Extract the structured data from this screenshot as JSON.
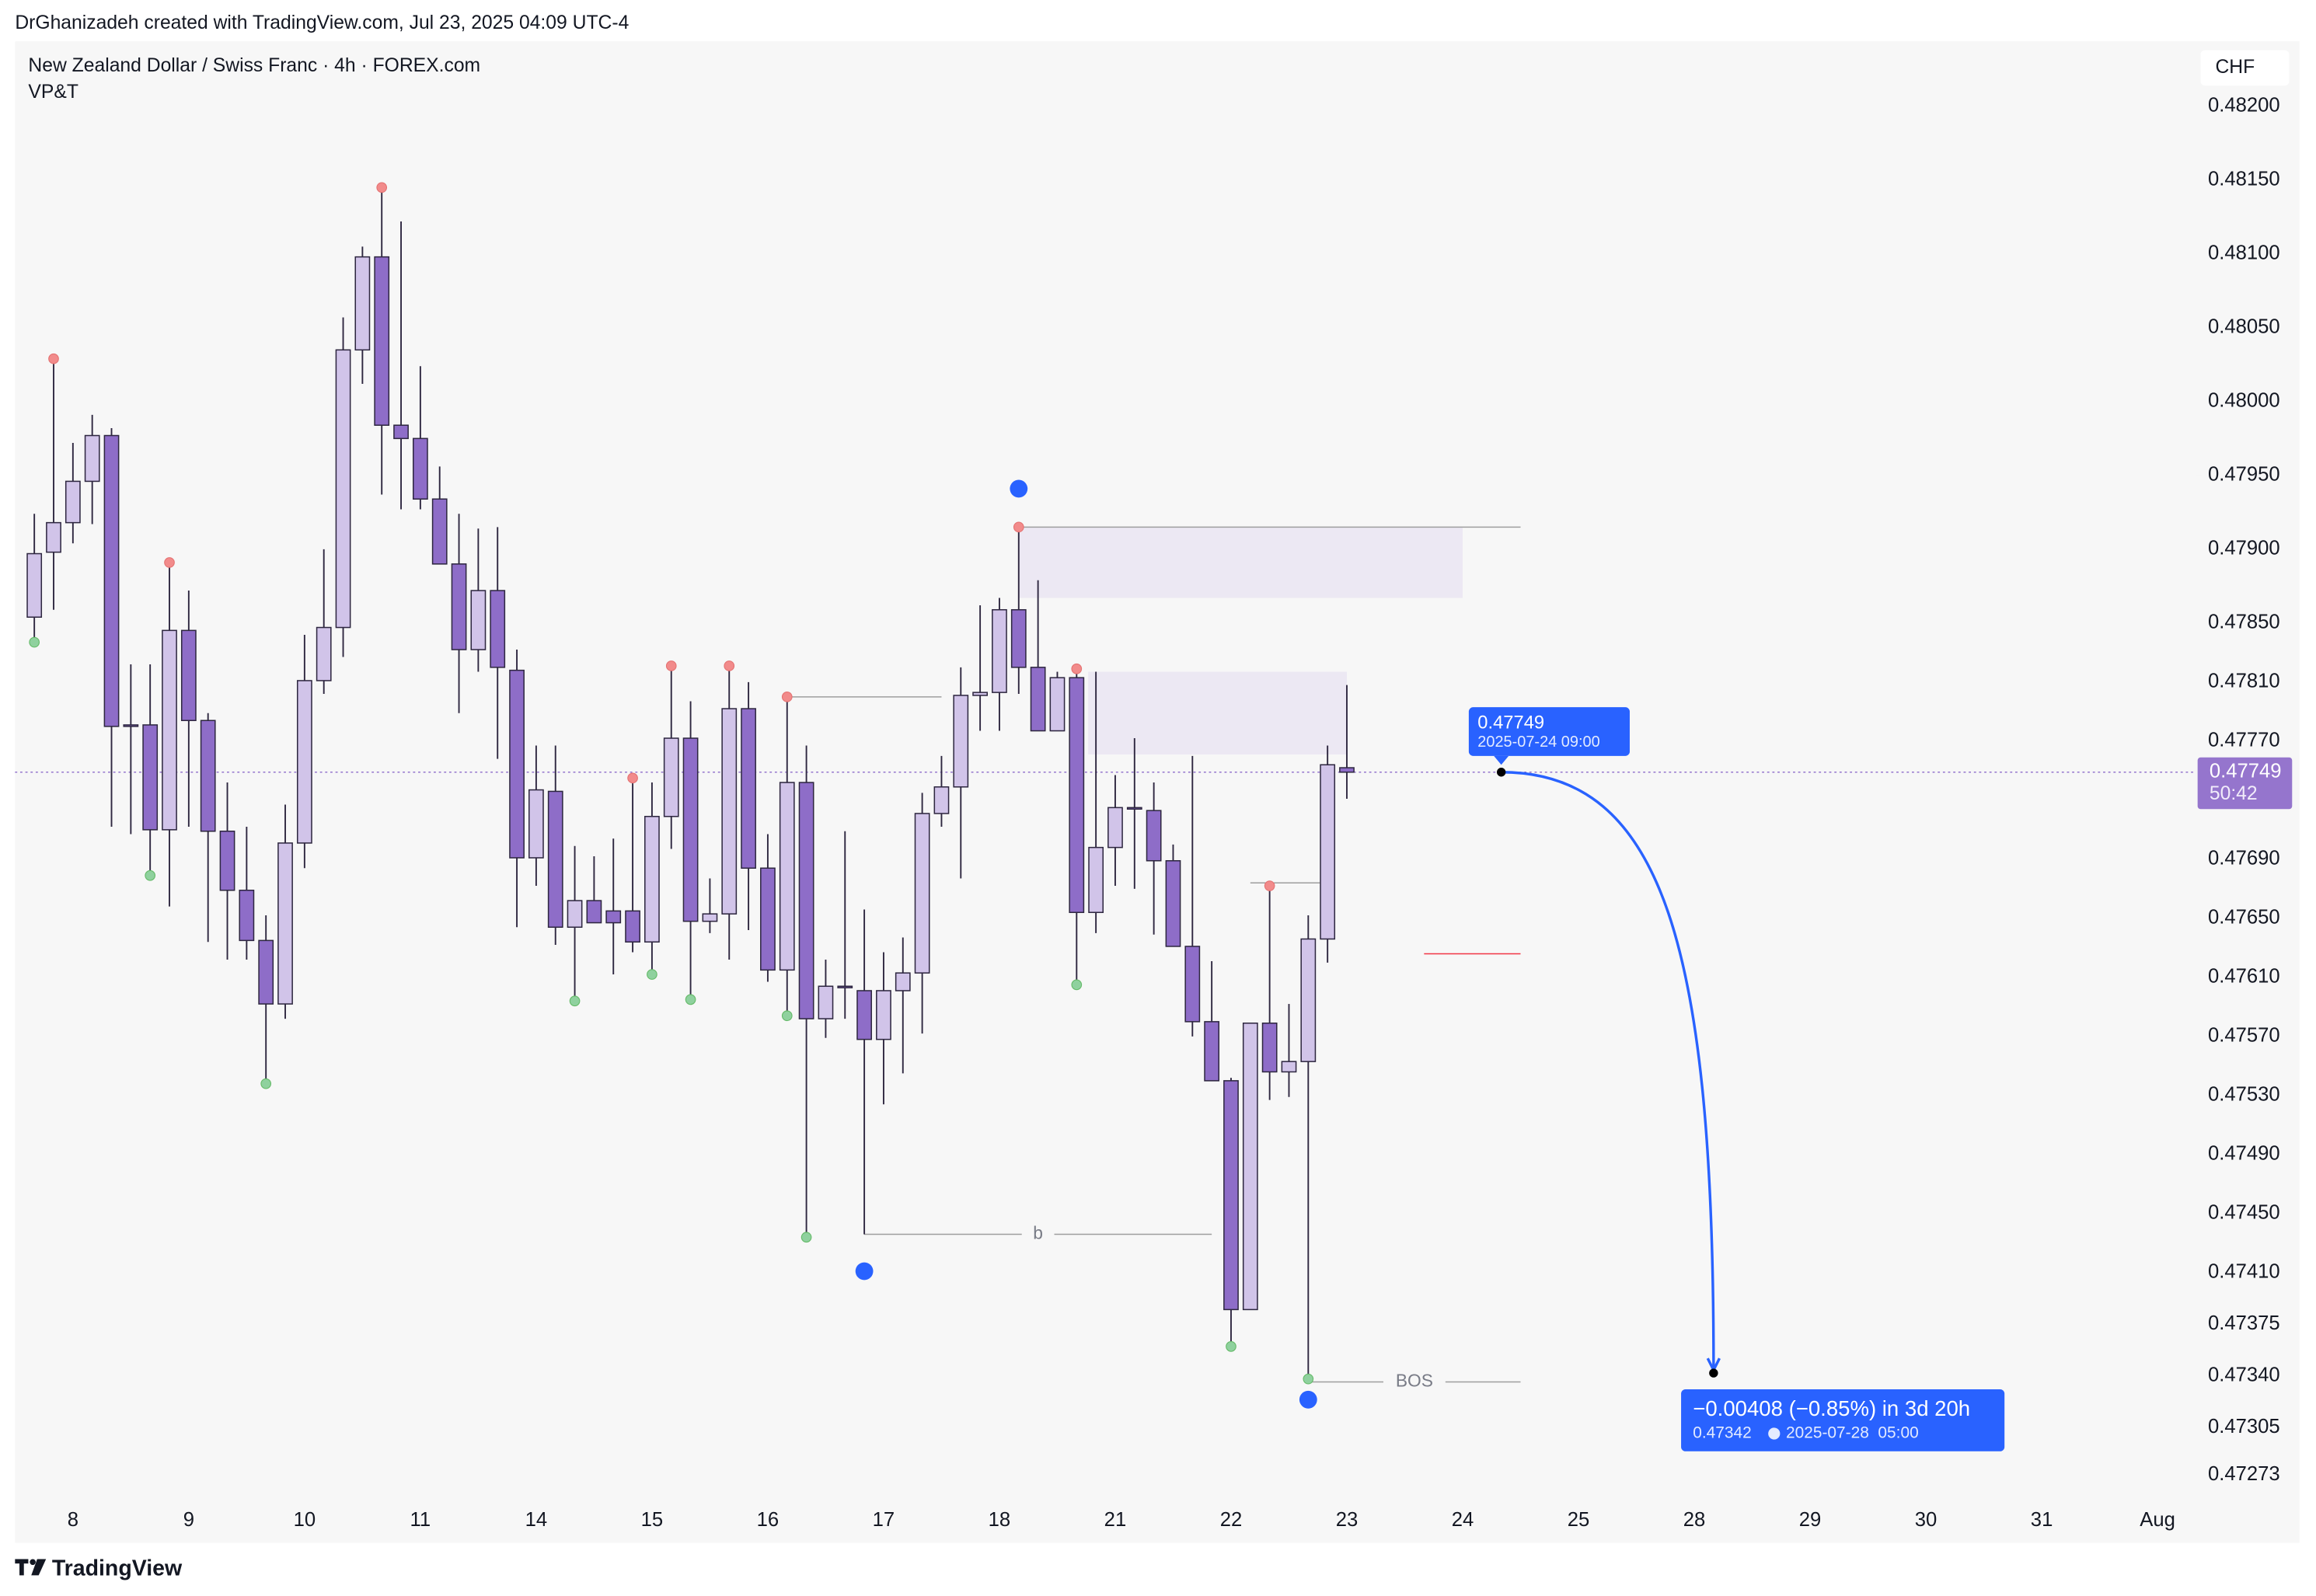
{
  "header": {
    "credit": "DrGhanizadeh created with TradingView.com, Jul 23, 2025 04:09 UTC-4",
    "symbol": "New Zealand Dollar / Swiss Franc · 4h · FOREX.com",
    "indicator": "VP&T",
    "currency": "CHF",
    "logo": "TradingView"
  },
  "chart_data": {
    "type": "candlestick",
    "x": [
      -2,
      -1,
      0,
      1,
      2,
      3,
      4,
      5,
      6,
      7,
      8,
      9,
      10,
      11,
      12,
      13,
      14,
      15,
      16,
      17,
      18,
      19,
      20,
      21,
      22,
      23,
      24,
      25,
      26,
      27,
      28,
      29,
      30,
      31,
      32,
      33,
      34,
      35,
      36,
      37,
      38,
      39,
      40,
      41,
      42,
      43,
      44,
      45,
      46,
      47,
      48,
      49,
      50,
      51,
      52,
      53,
      54,
      55,
      56,
      57,
      58,
      59,
      60,
      61,
      62,
      63,
      64,
      65,
      66
    ],
    "open": [
      0.47854,
      0.47898,
      0.47918,
      0.47946,
      0.47977,
      0.47781,
      0.47781,
      0.4771,
      0.47845,
      0.47784,
      0.47709,
      0.47669,
      0.47635,
      0.47592,
      0.47701,
      0.47811,
      0.47847,
      0.48035,
      0.48098,
      0.47984,
      0.47975,
      0.47934,
      0.4789,
      0.47832,
      0.47872,
      0.47818,
      0.47691,
      0.47736,
      0.47644,
      0.47662,
      0.47655,
      0.47655,
      0.47634,
      0.47719,
      0.47772,
      0.47648,
      0.47653,
      0.47792,
      0.47684,
      0.47615,
      0.47742,
      0.47582,
      0.47604,
      0.47601,
      0.47568,
      0.47601,
      0.47613,
      0.47721,
      0.47739,
      0.47801,
      0.47803,
      0.47859,
      0.4782,
      0.47777,
      0.47813,
      0.47654,
      0.47698,
      0.47725,
      0.47723,
      0.47689,
      0.47631,
      0.4758,
      0.4754,
      0.47385,
      0.47579,
      0.47546,
      0.47553,
      0.47636,
      0.47752
    ],
    "high": [
      0.47924,
      0.48029,
      0.47972,
      0.47991,
      0.47982,
      0.47822,
      0.47822,
      0.47891,
      0.47872,
      0.47789,
      0.47742,
      0.47712,
      0.47652,
      0.47727,
      0.47842,
      0.479,
      0.48057,
      0.48105,
      0.48145,
      0.48122,
      0.48024,
      0.47956,
      0.47924,
      0.47914,
      0.47915,
      0.47832,
      0.47767,
      0.47767,
      0.47699,
      0.47692,
      0.47704,
      0.47745,
      0.47742,
      0.47821,
      0.47797,
      0.47677,
      0.47821,
      0.4781,
      0.47707,
      0.478,
      0.47767,
      0.47622,
      0.47709,
      0.47656,
      0.47627,
      0.47637,
      0.47735,
      0.4776,
      0.4782,
      0.47862,
      0.47867,
      0.47915,
      0.47879,
      0.47817,
      0.47819,
      0.47817,
      0.47747,
      0.47772,
      0.47742,
      0.477,
      0.4776,
      0.47621,
      0.47542,
      0.47579,
      0.47672,
      0.47592,
      0.47652,
      0.47767,
      0.47808
    ],
    "low": [
      0.47837,
      0.47859,
      0.47904,
      0.47917,
      0.47712,
      0.47707,
      0.47679,
      0.47658,
      0.47712,
      0.47634,
      0.47622,
      0.47622,
      0.47538,
      0.47582,
      0.47684,
      0.47802,
      0.47827,
      0.48012,
      0.47937,
      0.47927,
      0.47927,
      0.4789,
      0.47789,
      0.47817,
      0.47758,
      0.47644,
      0.47672,
      0.47632,
      0.47594,
      0.47647,
      0.47612,
      0.47627,
      0.47612,
      0.47697,
      0.47595,
      0.4764,
      0.47622,
      0.47642,
      0.47607,
      0.47584,
      0.47434,
      0.47569,
      0.47582,
      0.47436,
      0.47524,
      0.47545,
      0.47572,
      0.47712,
      0.47677,
      0.47777,
      0.47777,
      0.47802,
      0.47777,
      0.47777,
      0.47605,
      0.4764,
      0.47672,
      0.4767,
      0.47639,
      0.47631,
      0.4757,
      0.4754,
      0.4736,
      0.47385,
      0.47527,
      0.47529,
      0.47338,
      0.4762,
      0.47731
    ],
    "close": [
      0.47897,
      0.47918,
      0.47946,
      0.47977,
      0.4778,
      0.4778,
      0.4771,
      0.47845,
      0.47784,
      0.47709,
      0.47669,
      0.47635,
      0.47592,
      0.47701,
      0.47811,
      0.47847,
      0.48035,
      0.48098,
      0.47984,
      0.47975,
      0.47934,
      0.4789,
      0.47832,
      0.47872,
      0.4782,
      0.47691,
      0.47737,
      0.47644,
      0.47662,
      0.47647,
      0.47647,
      0.47634,
      0.47719,
      0.47772,
      0.47648,
      0.47653,
      0.47792,
      0.47684,
      0.47615,
      0.47742,
      0.47582,
      0.47604,
      0.47603,
      0.47568,
      0.47601,
      0.47613,
      0.47721,
      0.47739,
      0.47801,
      0.47803,
      0.47859,
      0.4782,
      0.47777,
      0.47813,
      0.47654,
      0.47698,
      0.47725,
      0.47724,
      0.47689,
      0.47631,
      0.4758,
      0.4754,
      0.47385,
      0.47579,
      0.47546,
      0.47553,
      0.47636,
      0.47754,
      0.47749
    ],
    "up_color": "#d1c4e9",
    "down_color": "#8e6dc8",
    "xlim": [
      -3,
      110
    ],
    "ylim": [
      0.47257,
      0.48242
    ],
    "xticks": [
      {
        "value": 0,
        "label": "8"
      },
      {
        "value": 6,
        "label": "9"
      },
      {
        "value": 12,
        "label": "10"
      },
      {
        "value": 18,
        "label": "11"
      },
      {
        "value": 24,
        "label": "14"
      },
      {
        "value": 30,
        "label": "15"
      },
      {
        "value": 36,
        "label": "16"
      },
      {
        "value": 42,
        "label": "17"
      },
      {
        "value": 48,
        "label": "18"
      },
      {
        "value": 54,
        "label": "21"
      },
      {
        "value": 60,
        "label": "22"
      },
      {
        "value": 66,
        "label": "23"
      },
      {
        "value": 72,
        "label": "24"
      },
      {
        "value": 78,
        "label": "25"
      },
      {
        "value": 84,
        "label": "28"
      },
      {
        "value": 90,
        "label": "29"
      },
      {
        "value": 96,
        "label": "30"
      },
      {
        "value": 102,
        "label": "31"
      },
      {
        "value": 108,
        "label": "Aug"
      }
    ],
    "yticks": [
      {
        "value": 0.482,
        "label": "0.48200"
      },
      {
        "value": 0.4815,
        "label": "0.48150"
      },
      {
        "value": 0.481,
        "label": "0.48100"
      },
      {
        "value": 0.4805,
        "label": "0.48050"
      },
      {
        "value": 0.48,
        "label": "0.48000"
      },
      {
        "value": 0.4795,
        "label": "0.47950"
      },
      {
        "value": 0.479,
        "label": "0.47900"
      },
      {
        "value": 0.4785,
        "label": "0.47850"
      },
      {
        "value": 0.4781,
        "label": "0.47810"
      },
      {
        "value": 0.4777,
        "label": "0.47770"
      },
      {
        "value": 0.4769,
        "label": "0.47690"
      },
      {
        "value": 0.4765,
        "label": "0.47650"
      },
      {
        "value": 0.4761,
        "label": "0.47610"
      },
      {
        "value": 0.4757,
        "label": "0.47570"
      },
      {
        "value": 0.4753,
        "label": "0.47530"
      },
      {
        "value": 0.4749,
        "label": "0.47490"
      },
      {
        "value": 0.4745,
        "label": "0.47450"
      },
      {
        "value": 0.4741,
        "label": "0.47410"
      },
      {
        "value": 0.47375,
        "label": "0.47375"
      },
      {
        "value": 0.4734,
        "label": "0.47340"
      },
      {
        "value": 0.47305,
        "label": "0.47305"
      },
      {
        "value": 0.47273,
        "label": "0.47273"
      }
    ],
    "last_price": {
      "value": 0.47749,
      "countdown": "50:42",
      "color": "#9575cd"
    },
    "pivot_highs": [
      -1,
      5,
      16,
      29,
      31,
      34,
      37,
      49,
      52,
      62
    ],
    "pivot_lows": [
      -2,
      4,
      10,
      26,
      30,
      32,
      37,
      38,
      52,
      60,
      64
    ],
    "markers": [
      {
        "x": 49,
        "value": 0.47941
      },
      {
        "x": 41,
        "value": 0.47411
      },
      {
        "x": 64,
        "value": 0.47324
      }
    ],
    "marker_color": "#2962ff",
    "zones": [
      {
        "x": [
          49,
          72
        ],
        "values": [
          0.47915,
          0.47867
        ]
      },
      {
        "x": [
          52.6,
          66
        ],
        "values": [
          0.47817,
          0.47761
        ]
      }
    ],
    "levels": [
      {
        "value": 0.47915,
        "x": [
          49,
          75
        ]
      },
      {
        "value": 0.478,
        "x": [
          37,
          45
        ]
      },
      {
        "value": 0.47436,
        "x": [
          41,
          59
        ],
        "label": "b"
      },
      {
        "value": 0.47336,
        "x": [
          64,
          75
        ],
        "label": "BOS"
      },
      {
        "value": 0.47626,
        "x": [
          70,
          75
        ],
        "color": "#f23645"
      },
      {
        "value": 0.47674,
        "x": [
          61,
          64.6
        ]
      }
    ],
    "projection": {
      "from": {
        "x": 74,
        "value": 0.47749,
        "time": "2025-07-24 09:00"
      },
      "to": {
        "x": 85,
        "value": 0.47342,
        "time": "2025-07-28  05:00"
      },
      "change": "−0.00408 (−0.85%) in 3d 20h",
      "color": "#2962ff"
    }
  }
}
